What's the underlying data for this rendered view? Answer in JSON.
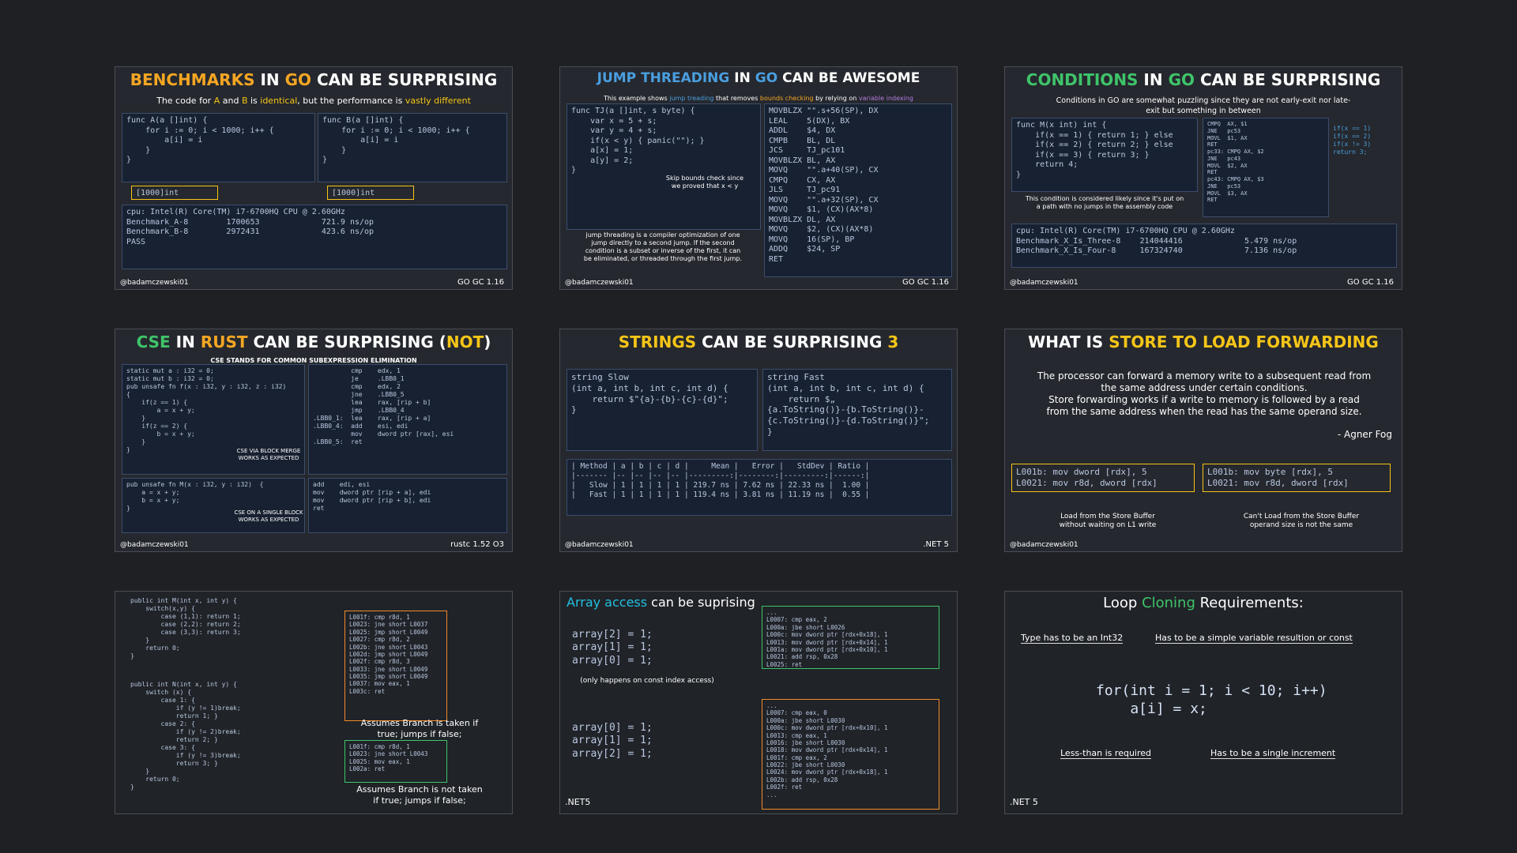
{
  "cards": [
    {
      "title": [
        {
          "text": "BENCHMARKS",
          "color": "#f5a623"
        },
        {
          "text": " IN ",
          "color": "#ffffff"
        },
        {
          "text": "GO",
          "color": "#f5a623"
        },
        {
          "text": " CAN BE SURPRISING",
          "color": "#ffffff"
        }
      ],
      "subtitle": [
        {
          "text": "The code for ",
          "color": "#ffffff"
        },
        {
          "text": "A",
          "color": "#f5c518"
        },
        {
          "text": " and ",
          "color": "#ffffff"
        },
        {
          "text": "B",
          "color": "#f5c518"
        },
        {
          "text": " is ",
          "color": "#ffffff"
        },
        {
          "text": "identical",
          "color": "#f5c518"
        },
        {
          "text": ", but the performance is ",
          "color": "#ffffff"
        },
        {
          "text": "vastly different",
          "color": "#f5c518"
        }
      ],
      "items": [
        {
          "style": "code",
          "lines": [
            "func A(a []int) {",
            "    for i := 0; i < 1000; i++ {",
            "        a[i] = i",
            "    }",
            "}"
          ]
        },
        {
          "style": "box",
          "lines": [
            "[1000]int"
          ]
        },
        {
          "style": "code",
          "lines": [
            "func B(a []int) {",
            "    for i := 0; i < 1000; i++ {",
            "        a[i] = i",
            "    }",
            "}"
          ]
        },
        {
          "style": "box",
          "lines": [
            "[1000]int"
          ]
        },
        {
          "style": "code",
          "lines": [
            "cpu: Intel(R) Core(TM) i7-6700HQ CPU @ 2.60GHz",
            "Benchmark_A-8        1700653             721.9 ns/op",
            "Benchmark_B-8        2972431             423.6 ns/op",
            "PASS"
          ]
        }
      ],
      "footer_left": "@badamczewski01",
      "footer_right": "GO GC 1.16"
    },
    {
      "title": [
        {
          "text": "JUMP THREADING",
          "color": "#4a9fe0"
        },
        {
          "text": " IN ",
          "color": "#ffffff"
        },
        {
          "text": "GO",
          "color": "#4a9fe0"
        },
        {
          "text": " CAN BE AWESOME",
          "color": "#ffffff"
        }
      ],
      "subtitle": [
        {
          "text": "This example shows ",
          "color": "#ffffff"
        },
        {
          "text": "jump treading",
          "color": "#4a9fe0"
        },
        {
          "text": " that removes ",
          "color": "#ffffff"
        },
        {
          "text": "bounds checking",
          "color": "#f5a623"
        },
        {
          "text": " by relying on ",
          "color": "#ffffff"
        },
        {
          "text": "variable indexing",
          "color": "#b47be0"
        }
      ],
      "items": [
        {
          "style": "code",
          "lines": [
            "func TJ(a []int, s byte) {",
            "    var x = 5 + s;",
            "    var y = 4 + s;",
            "    if(x < y) { panic(\"\"); }",
            "    a[x] = 1;",
            "    a[y] = 2;",
            "}"
          ]
        },
        {
          "style": "note",
          "lines": [
            "Skip bounds check since",
            "we proved that x < y"
          ]
        },
        {
          "style": "code",
          "lines": [
            "MOVBLZX \"\".s+56(SP), DX",
            "LEAL    5(DX), BX",
            "ADDL    $4, DX",
            "CMPB    BL, DL",
            "JCS     TJ_pc101",
            "MOVBLZX BL, AX",
            "MOVQ    \"\".a+40(SP), CX",
            "CMPQ    CX, AX",
            "JLS     TJ_pc91",
            "MOVQ    \"\".a+32(SP), CX",
            "MOVQ    $1, (CX)(AX*8)",
            "MOVBLZX DL, AX",
            "MOVQ    $2, (CX)(AX*8)",
            "MOVQ    16(SP), BP",
            "ADDQ    $24, SP",
            "RET"
          ]
        },
        {
          "style": "note",
          "lines": [
            "jump threading is a compiler optimization of one",
            "jump directly to a second jump. If the second",
            "condition is a subset or inverse of the first, it can",
            "be eliminated, or threaded through the first jump."
          ]
        }
      ],
      "footer_left": "@badamczewski01",
      "footer_right": "GO GC 1.16"
    },
    {
      "title": [
        {
          "text": "CONDITIONS",
          "color": "#3fc46a"
        },
        {
          "text": " IN ",
          "color": "#ffffff"
        },
        {
          "text": "GO",
          "color": "#3fc46a"
        },
        {
          "text": " CAN BE SURPRISING",
          "color": "#ffffff"
        }
      ],
      "subtitle": [
        {
          "text": "Conditions in GO are somewhat puzzling since they are not early-exit nor late-exit but something in between",
          "color": "#ffffff"
        }
      ],
      "items": [
        {
          "style": "code",
          "lines": [
            "func M(x int) int {",
            "    if(x == 1) { return 1; } else",
            "    if(x == 2) { return 2; } else",
            "    if(x == 3) { return 3; }",
            "    return 4;",
            "}"
          ]
        },
        {
          "style": "note",
          "lines": [
            "This condition is considered likely since it's put on",
            "a path with no jumps in the assembly code"
          ]
        },
        {
          "style": "code",
          "lines": [
            "CMPQ  AX, $1",
            "JNE   pc53",
            "MOVL  $1, AX",
            "RET",
            "pc33: CMPQ AX, $2",
            "JNE   pc43",
            "MOVL  $2, AX",
            "RET",
            "pc43: CMPQ AX, $3",
            "JNE   pc53",
            "MOVL  $3, AX",
            "RET"
          ]
        },
        {
          "style": "plain",
          "lines": [
            "if(x == 1)",
            "if(x == 2)",
            "if(x != 3)",
            "return 3;"
          ]
        },
        {
          "style": "code",
          "lines": [
            "cpu: Intel(R) Core(TM) i7-6700HQ CPU @ 2.60GHz",
            "Benchmark_X_Is_Three-8    214044416             5.479 ns/op",
            "Benchmark_X_Is_Four-8     167324740             7.136 ns/op"
          ]
        }
      ],
      "footer_left": "@badamczewski01",
      "footer_right": "GO GC 1.16"
    },
    {
      "title": [
        {
          "text": "CSE",
          "color": "#3fc46a"
        },
        {
          "text": " IN ",
          "color": "#ffffff"
        },
        {
          "text": "RUST",
          "color": "#f5a623"
        },
        {
          "text": " CAN BE SURPRISING (",
          "color": "#ffffff"
        },
        {
          "text": "NOT",
          "color": "#f5c518"
        },
        {
          "text": ")",
          "color": "#ffffff"
        }
      ],
      "subtitle": [
        {
          "text": "CSE STANDS FOR COMMON SUBEXPRESSION ELIMINATION",
          "color": "#ffffff"
        }
      ],
      "items": [
        {
          "style": "code",
          "lines": [
            "static mut a : i32 = 0;",
            "static mut b : i32 = 0;",
            "pub unsafe fn f(x : i32, y : i32, z : i32)",
            "{",
            "    if(z == 1) {",
            "        a = x + y;",
            "    }",
            "    if(z == 2) {",
            "        b = x + y;",
            "    }",
            "}"
          ]
        },
        {
          "style": "code",
          "lines": [
            "          cmp    edx, 1",
            "          je     .LBB0_1",
            "          cmp    edx, 2",
            "          jne    .LBB0_5",
            "          lea    rax, [rip + b]",
            "          jmp    .LBB0_4",
            ".LBB0_1:  lea    rax, [rip + a]",
            ".LBB0_4:  add    esi, edi",
            "          mov    dword ptr [rax], esi",
            ".LBB0_5:  ret"
          ]
        },
        {
          "style": "note",
          "lines": [
            "CSE VIA BLOCK MERGE",
            "WORKS AS EXPECTED"
          ]
        },
        {
          "style": "code",
          "lines": [
            "pub unsafe fn M(x : i32, y : i32)  {",
            "    a = x + y;",
            "    b = x + y;",
            "}"
          ]
        },
        {
          "style": "code",
          "lines": [
            "add    edi, esi",
            "mov    dword ptr [rip + a], edi",
            "mov    dword ptr [rip + b], edi",
            "ret"
          ]
        },
        {
          "style": "note",
          "lines": [
            "CSE ON A SINGLE BLOCK",
            "WORKS AS EXPECTED"
          ]
        }
      ],
      "footer_left": "@badamczewski01",
      "footer_right": "rustc 1.52 O3"
    },
    {
      "title": [
        {
          "text": "STRINGS",
          "color": "#f5c518"
        },
        {
          "text": " CAN BE SURPRISING ",
          "color": "#ffffff"
        },
        {
          "text": "3",
          "color": "#f5c518"
        }
      ],
      "items": [
        {
          "style": "code",
          "lines": [
            "string Slow",
            "(int a, int b, int c, int d) {",
            "    return $\"{a}-{b}-{c}-{d}\";",
            "}"
          ]
        },
        {
          "style": "code",
          "lines": [
            "string Fast",
            "(int a, int b, int c, int d) {",
            "    return $„",
            "{a.ToString()}-{b.ToString()}-",
            "{c.ToString()}-{d.ToString()}\";",
            "}"
          ]
        },
        {
          "style": "code",
          "lines": [
            "| Method | a | b | c | d |     Mean |   Error |   StdDev | Ratio |",
            "|------- |-- |-- |-- |-- |---------:|--------:|---------:|------:|",
            "|   Slow | 1 | 1 | 1 | 1 | 219.7 ns | 7.62 ns | 22.33 ns |  1.00 |",
            "|   Fast | 1 | 1 | 1 | 1 | 119.4 ns | 3.81 ns | 11.19 ns |  0.55 |"
          ]
        }
      ],
      "footer_left": "@badamczewski01",
      "footer_right": ".NET 5"
    },
    {
      "title": [
        {
          "text": "WHAT IS ",
          "color": "#ffffff"
        },
        {
          "text": "STORE TO LOAD FORWARDING",
          "color": "#f5c518"
        }
      ],
      "items": [
        {
          "style": "para",
          "lines": [
            "The processor can forward a memory write to a subsequent read from",
            "the same address under certain conditions.",
            "Store forwarding works if a write to memory is followed by a read",
            "from the same address when the read has the same operand size."
          ]
        },
        {
          "style": "quote",
          "lines": [
            "- Agner Fog"
          ]
        },
        {
          "style": "box",
          "lines": [
            "L001b: mov dword [rdx], 5",
            "L0021: mov r8d, dword [rdx]"
          ]
        },
        {
          "style": "box",
          "lines": [
            "L001b: mov byte [rdx], 5",
            "L0021: mov r8d, dword [rdx]"
          ]
        },
        {
          "style": "note",
          "lines": [
            "Load from the Store Buffer",
            "without waiting on L1 write"
          ]
        },
        {
          "style": "note",
          "lines": [
            "Can't Load from the Store Buffer",
            "operand size is not the same"
          ]
        }
      ],
      "footer_left": "@badamczewski01"
    },
    {
      "items": [
        {
          "style": "plain",
          "lines": [
            "public int M(int x, int y) {",
            "    switch(x,y) {",
            "        case (1,1): return 1;",
            "        case (2,2): return 2;",
            "        case (3,3): return 3;",
            "    }",
            "    return 0;",
            "}"
          ]
        },
        {
          "style": "plain",
          "lines": [
            "public int N(int x, int y) {",
            "    switch (x) {",
            "        case 1: {",
            "            if (y != 1)break;",
            "            return 1; }",
            "        case 2: {",
            "            if (y != 2)break;",
            "            return 2; }",
            "        case 3: {",
            "            if (y != 3)break;",
            "            return 3; }",
            "    }",
            "    return 0;",
            "}"
          ]
        },
        {
          "style": "orange",
          "lines": [
            "L001f: cmp r8d, 1",
            "L0023: jne short L0037",
            "L0025: jmp short L0049",
            "L0027: cmp r8d, 2",
            "L002b: jne short L0043",
            "L002d: jmp short L0049",
            "L002f: cmp r8d, 3",
            "L0033: jne short L0049",
            "L0035: jmp short L0049",
            "L0037: mov eax, 1",
            "L003c: ret"
          ]
        },
        {
          "style": "note",
          "lines": [
            "Assumes Branch is taken if",
            "true; jumps if false;"
          ]
        },
        {
          "style": "green",
          "lines": [
            "L001f: cmp r8d, 1",
            "L0023: jne short L0043",
            "L0025: mov eax, 1",
            "L002a: ret"
          ]
        },
        {
          "style": "note",
          "lines": [
            "Assumes Branch is not taken",
            "if true; jumps if false;"
          ]
        }
      ]
    },
    {
      "title": [
        {
          "text": "Array access",
          "color": "#22c0e0"
        },
        {
          "text": " can be suprising",
          "color": "#ffffff"
        }
      ],
      "items": [
        {
          "style": "plain",
          "lines": [
            "array[2] = 1;",
            "array[1] = 1;",
            "array[0] = 1;"
          ]
        },
        {
          "style": "note",
          "lines": [
            "(only happens on const index access)"
          ]
        },
        {
          "style": "plain",
          "lines": [
            "array[0] = 1;",
            "array[1] = 1;",
            "array[2] = 1;"
          ]
        },
        {
          "style": "green",
          "lines": [
            "...",
            "L0007: cmp eax, 2",
            "L000a: jbe short L0026",
            "L000c: mov dword ptr [rdx+0x18], 1",
            "L0013: mov dword ptr [rdx+0x14], 1",
            "L001a: mov dword ptr [rdx+0x10], 1",
            "L0021: add rsp, 0x28",
            "L0025: ret",
            "..."
          ]
        },
        {
          "style": "orange",
          "lines": [
            "...",
            "L0007: cmp eax, 0",
            "L000a: jbe short L0030",
            "L000c: mov dword ptr [rdx+0x10], 1",
            "L0013: cmp eax, 1",
            "L0016: jbe short L0030",
            "L0018: mov dword ptr [rdx+0x14], 1",
            "L001f: cmp eax, 2",
            "L0022: jbe short L0030",
            "L0024: mov dword ptr [rdx+0x18], 1",
            "L002b: add rsp, 0x28",
            "L002f: ret",
            "..."
          ]
        }
      ],
      "footer_left": ".NET5"
    },
    {
      "title": [
        {
          "text": "Loop ",
          "color": "#ffffff"
        },
        {
          "text": "Cloning",
          "color": "#3fc46a"
        },
        {
          "text": " Requirements:",
          "color": "#ffffff"
        }
      ],
      "items": [
        {
          "style": "note",
          "lines": [
            "Type has to be an Int32"
          ]
        },
        {
          "style": "note",
          "lines": [
            "Has to be a simple variable resultion or const"
          ]
        },
        {
          "style": "plain",
          "lines": [
            "for(int i = 1; i < 10; i++)",
            "    a[i] = x;"
          ]
        },
        {
          "style": "note",
          "lines": [
            "Less-than is required"
          ]
        },
        {
          "style": "note",
          "lines": [
            "Has to be a single increment"
          ]
        }
      ],
      "footer_left": ".NET 5"
    }
  ]
}
